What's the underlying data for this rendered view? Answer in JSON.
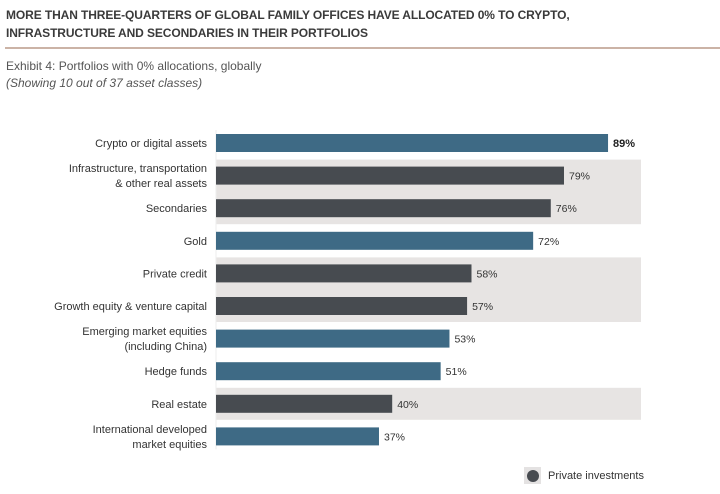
{
  "header": {
    "title_line1": "MORE THAN THREE-QUARTERS OF GLOBAL FAMILY OFFICES HAVE ALLOCATED 0% TO CRYPTO,",
    "title_line2": "INFRASTRUCTURE AND SECONDARIES IN THEIR PORTFOLIOS",
    "subtitle": "Exhibit 4: Portfolios with 0% allocations, globally",
    "subtitle_note": "(Showing 10 out of 37 asset classes)"
  },
  "colors": {
    "public": "#3e6a85",
    "private": "#474b50",
    "private_band": "#e7e4e3",
    "divider": "#cbb3a6"
  },
  "chart_data": {
    "type": "bar",
    "orientation": "horizontal",
    "title": "Exhibit 4: Portfolios with 0% allocations, globally",
    "subtitle": "(Showing 10 out of 37 asset classes)",
    "xlabel": "",
    "ylabel": "",
    "xlim": [
      0,
      100
    ],
    "grid": false,
    "legend_position": "bottom-right",
    "legend": [
      {
        "name": "Private investments",
        "color": "#474b50"
      }
    ],
    "categories": [
      [
        "Crypto or digital assets"
      ],
      [
        "Infrastructure, transportation",
        "& other real assets"
      ],
      [
        "Secondaries"
      ],
      [
        "Gold"
      ],
      [
        "Private credit"
      ],
      [
        "Growth equity & venture capital"
      ],
      [
        "Emerging market equities",
        "(including China)"
      ],
      [
        "Hedge funds"
      ],
      [
        "Real estate"
      ],
      [
        "International developed",
        "market equities"
      ]
    ],
    "values": [
      89,
      79,
      76,
      72,
      58,
      57,
      53,
      51,
      40,
      37
    ],
    "value_labels": [
      "89%",
      "79%",
      "76%",
      "72%",
      "58%",
      "57%",
      "53%",
      "51%",
      "40%",
      "37%"
    ],
    "private_investment": [
      false,
      true,
      true,
      false,
      true,
      true,
      false,
      false,
      true,
      false
    ],
    "highlight_label": [
      true,
      false,
      false,
      false,
      false,
      false,
      false,
      false,
      false,
      false
    ]
  },
  "legend": {
    "label": "Private investments"
  }
}
